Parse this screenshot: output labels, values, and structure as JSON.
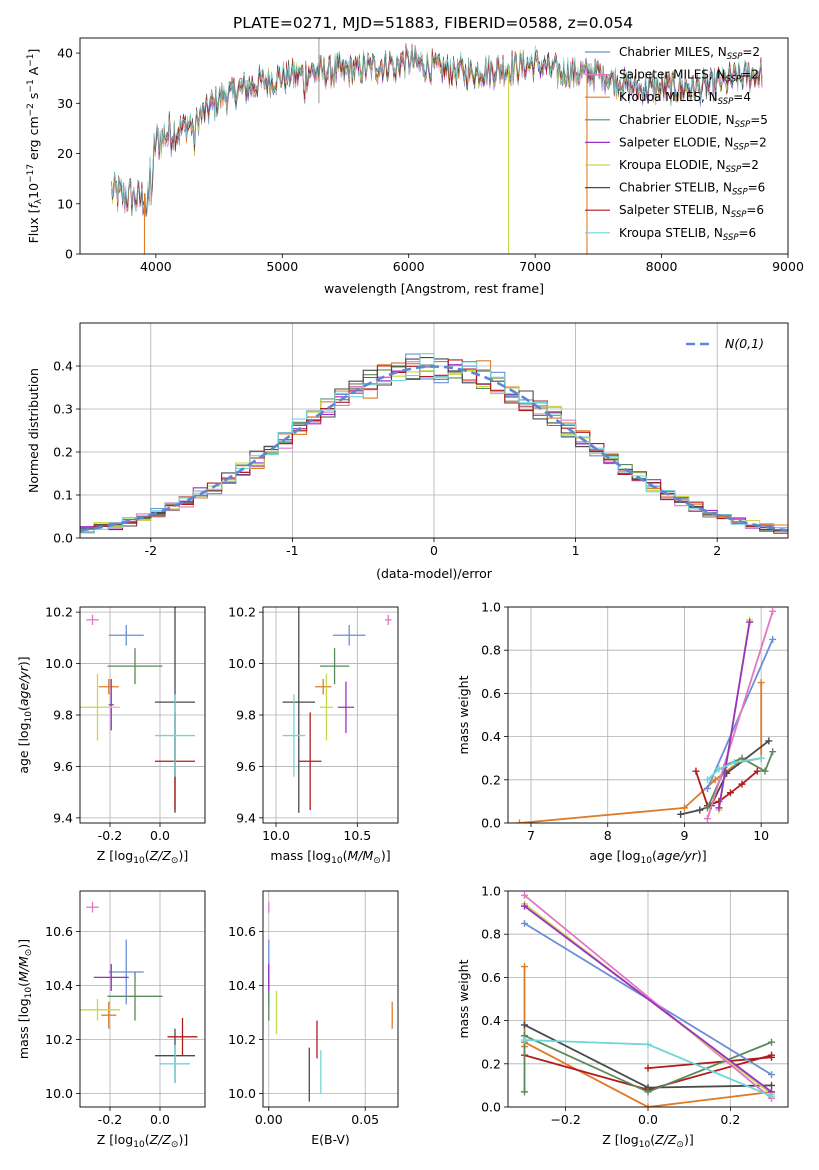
{
  "figure": {
    "title": "PLATE=0271, MJD=51883, FIBERID=0588, z=0.054"
  },
  "colors": {
    "c0": "#6b8fd6",
    "c1": "#e377c2",
    "c2": "#e07b28",
    "c3": "#5a8a5a",
    "c4": "#9b30c8",
    "c5": "#c8d84a",
    "c6": "#4a4a4a",
    "c7": "#b01c1c",
    "c8": "#6fd5d8",
    "normal": "#5b88d6"
  },
  "chart_data": [
    {
      "id": "spectrum",
      "type": "line",
      "xlabel": "wavelength [Angstrom, rest frame]",
      "ylabel": "Flux [f_λ10^-17 erg cm^-2 s^-1 A^-1]",
      "xlim": [
        3400,
        9000
      ],
      "ylim": [
        0,
        43
      ],
      "xticks": [
        4000,
        5000,
        6000,
        7000,
        8000,
        9000
      ],
      "yticks": [
        0,
        10,
        20,
        30,
        40
      ],
      "grid": false,
      "legend": "top-right",
      "continuum": {
        "x": [
          3650,
          3900,
          4000,
          4100,
          4300,
          4500,
          4800,
          5000,
          5200,
          5500,
          5800,
          6000,
          6200,
          6500,
          6800,
          7000,
          7200,
          7500,
          7800,
          8000,
          8300,
          8600,
          8800
        ],
        "y": [
          12,
          11,
          22,
          24,
          26,
          31,
          34,
          35,
          36,
          36.5,
          37.5,
          38.5,
          37,
          36,
          37,
          38,
          36,
          36,
          33,
          33,
          33,
          35,
          36
        ]
      },
      "series": [
        {
          "name": "Chabrier MILES, N_SSP=2",
          "label_main": "Chabrier MILES, N",
          "label_sub": "SSP",
          "label_end": "=2",
          "color": "#6b8fd6",
          "lw": 1.2
        },
        {
          "name": "Salpeter MILES, N_SSP=2",
          "label_main": "Salpeter MILES, N",
          "label_sub": "SSP",
          "label_end": "=2",
          "color": "#e377c2",
          "lw": 1.2
        },
        {
          "name": "Kroupa MILES, N_SSP=4",
          "label_main": "Kroupa MILES, N",
          "label_sub": "SSP",
          "label_end": "=4",
          "color": "#e07b28",
          "lw": 1.2
        },
        {
          "name": "Chabrier ELODIE, N_SSP=5",
          "label_main": "Chabrier ELODIE, N",
          "label_sub": "SSP",
          "label_end": "=5",
          "color": "#5a8a5a",
          "lw": 1.2
        },
        {
          "name": "Salpeter ELODIE, N_SSP=2",
          "label_main": "Salpeter ELODIE, N",
          "label_sub": "SSP",
          "label_end": "=2",
          "color": "#9b30c8",
          "lw": 1.2
        },
        {
          "name": "Kroupa ELODIE, N_SSP=2",
          "label_main": "Kroupa ELODIE, N",
          "label_sub": "SSP",
          "label_end": "=2",
          "color": "#c8d84a",
          "lw": 1.2
        },
        {
          "name": "Chabrier STELIB, N_SSP=6",
          "label_main": "Chabrier STELIB, N",
          "label_sub": "SSP",
          "label_end": "=6",
          "color": "#4a4a4a",
          "lw": 1.2
        },
        {
          "name": "Salpeter STELIB, N_SSP=6",
          "label_main": "Salpeter STELIB, N",
          "label_sub": "SSP",
          "label_end": "=6",
          "color": "#b01c1c",
          "lw": 1.2
        },
        {
          "name": "Kroupa STELIB, N_SSP=6",
          "label_main": "Kroupa STELIB, N",
          "label_sub": "SSP",
          "label_end": "=6",
          "color": "#6fd5d8",
          "lw": 1.2
        }
      ],
      "spikes": [
        {
          "x": 3910,
          "color": "#e07b28"
        },
        {
          "x": 6790,
          "color": "#c8d84a"
        },
        {
          "x": 7410,
          "color": "#e07b28"
        }
      ]
    },
    {
      "id": "residuals",
      "type": "histogram",
      "xlabel": "(data-model)/error",
      "ylabel": "Normed distribution",
      "xlim": [
        -2.5,
        2.5
      ],
      "ylim": [
        0,
        0.5
      ],
      "xticks": [
        -2,
        -1,
        0,
        1,
        2
      ],
      "yticks": [
        0.0,
        0.1,
        0.2,
        0.3,
        0.4
      ],
      "grid": true,
      "bin_width": 0.1,
      "normal_curve": {
        "label": "N(0,1)",
        "mean": 0,
        "std": 1
      },
      "legend": "top-right"
    },
    {
      "id": "age_vs_Z",
      "type": "errorbar",
      "xlabel": "Z [log10(Z/Z_sun)]",
      "ylabel": "age [log10(age/yr)]",
      "xlim": [
        -0.32,
        0.18
      ],
      "ylim": [
        9.38,
        10.22
      ],
      "xticks": [
        -0.2,
        0.0
      ],
      "yticks": [
        9.4,
        9.6,
        9.8,
        10.0,
        10.2
      ],
      "points": [
        {
          "color": "#6b8fd6",
          "x": -0.135,
          "y": 10.11,
          "xerr": 0.07,
          "yerr": 0.04
        },
        {
          "color": "#e377c2",
          "x": -0.27,
          "y": 10.17,
          "xerr": 0.025,
          "yerr": 0.02
        },
        {
          "color": "#e07b28",
          "x": -0.205,
          "y": 9.91,
          "xerr": 0.04,
          "yerr": 0.03
        },
        {
          "color": "#5a8a5a",
          "x": -0.1,
          "y": 9.99,
          "xerr": 0.11,
          "yerr": 0.07
        },
        {
          "color": "#9b30c8",
          "x": -0.195,
          "y": 9.84,
          "xerr": 0.01,
          "yerr": 0.1
        },
        {
          "color": "#c8d84a",
          "x": -0.25,
          "y": 9.83,
          "xerr": 0.09,
          "yerr": 0.13
        },
        {
          "color": "#4a4a4a",
          "x": 0.06,
          "y": 9.85,
          "xerr": 0.08,
          "yerr": 0.43
        },
        {
          "color": "#b01c1c",
          "x": 0.06,
          "y": 9.62,
          "xerr": 0.08,
          "yerr": 0.19
        },
        {
          "color": "#6fd5d8",
          "x": 0.06,
          "y": 9.72,
          "xerr": 0.08,
          "yerr": 0.16
        }
      ]
    },
    {
      "id": "age_vs_mass",
      "type": "errorbar",
      "xlabel": "mass [log10(M/M_sun)]",
      "ylabel": "",
      "xlim": [
        9.92,
        10.75
      ],
      "ylim": [
        9.38,
        10.22
      ],
      "xticks": [
        10.0,
        10.5
      ],
      "yticks": [
        9.4,
        9.6,
        9.8,
        10.0,
        10.2
      ],
      "points": [
        {
          "color": "#6b8fd6",
          "x": 10.45,
          "y": 10.11,
          "xerr": 0.1,
          "yerr": 0.04
        },
        {
          "color": "#e377c2",
          "x": 10.69,
          "y": 10.17,
          "xerr": 0.02,
          "yerr": 0.02
        },
        {
          "color": "#e07b28",
          "x": 10.29,
          "y": 9.91,
          "xerr": 0.05,
          "yerr": 0.03
        },
        {
          "color": "#5a8a5a",
          "x": 10.36,
          "y": 9.99,
          "xerr": 0.09,
          "yerr": 0.07
        },
        {
          "color": "#9b30c8",
          "x": 10.43,
          "y": 9.83,
          "xerr": 0.05,
          "yerr": 0.1
        },
        {
          "color": "#c8d84a",
          "x": 10.31,
          "y": 9.83,
          "xerr": 0.04,
          "yerr": 0.13
        },
        {
          "color": "#4a4a4a",
          "x": 10.14,
          "y": 9.85,
          "xerr": 0.1,
          "yerr": 0.43
        },
        {
          "color": "#b01c1c",
          "x": 10.21,
          "y": 9.62,
          "xerr": 0.07,
          "yerr": 0.19
        },
        {
          "color": "#6fd5d8",
          "x": 10.11,
          "y": 9.72,
          "xerr": 0.07,
          "yerr": 0.16
        }
      ]
    },
    {
      "id": "weight_vs_age",
      "type": "line",
      "xlabel": "age [log10(age/yr)]",
      "ylabel": "mass weight",
      "xlim": [
        6.7,
        10.35
      ],
      "ylim": [
        0,
        1
      ],
      "xticks": [
        7,
        8,
        9,
        10
      ],
      "yticks": [
        0.0,
        0.2,
        0.4,
        0.6,
        0.8,
        1.0
      ],
      "grid": true,
      "series": [
        {
          "color": "#e07b28",
          "x": [
            6.85,
            9.0,
            9.4,
            9.7,
            10.0,
            10.0
          ],
          "y": [
            0.0,
            0.07,
            0.2,
            0.28,
            0.3,
            0.65
          ]
        },
        {
          "color": "#b01c1c",
          "x": [
            9.15,
            9.3,
            9.45,
            9.6,
            9.75,
            9.95
          ],
          "y": [
            0.24,
            0.08,
            0.1,
            0.14,
            0.18,
            0.24
          ]
        },
        {
          "color": "#4a4a4a",
          "x": [
            8.95,
            9.2,
            9.35,
            9.55,
            10.1
          ],
          "y": [
            0.04,
            0.06,
            0.08,
            0.23,
            0.38
          ]
        },
        {
          "color": "#5a8a5a",
          "x": [
            9.3,
            9.55,
            9.75,
            10.05,
            10.15
          ],
          "y": [
            0.07,
            0.27,
            0.3,
            0.24,
            0.33
          ]
        },
        {
          "color": "#6b8fd6",
          "x": [
            9.3,
            10.15
          ],
          "y": [
            0.16,
            0.85
          ]
        },
        {
          "color": "#e377c2",
          "x": [
            9.3,
            10.15
          ],
          "y": [
            0.02,
            0.98
          ]
        },
        {
          "color": "#c8d84a",
          "x": [
            9.45,
            9.85
          ],
          "y": [
            0.06,
            0.94
          ]
        },
        {
          "color": "#9b30c8",
          "x": [
            9.45,
            9.85
          ],
          "y": [
            0.07,
            0.93
          ]
        },
        {
          "color": "#6fd5d8",
          "x": [
            9.3,
            9.45,
            9.65,
            10.0
          ],
          "y": [
            0.2,
            0.25,
            0.28,
            0.3
          ]
        }
      ]
    },
    {
      "id": "mass_vs_Z",
      "type": "errorbar",
      "xlabel": "Z [log10(Z/Z_sun)]",
      "ylabel": "mass [log10(M/M_sun)]",
      "xlim": [
        -0.32,
        0.18
      ],
      "ylim": [
        9.95,
        10.75
      ],
      "xticks": [
        -0.2,
        0.0
      ],
      "yticks": [
        10.0,
        10.2,
        10.4,
        10.6
      ],
      "points": [
        {
          "color": "#6b8fd6",
          "x": -0.135,
          "y": 10.45,
          "xerr": 0.07,
          "yerr": 0.12
        },
        {
          "color": "#e377c2",
          "x": -0.27,
          "y": 10.69,
          "xerr": 0.025,
          "yerr": 0.02
        },
        {
          "color": "#e07b28",
          "x": -0.205,
          "y": 10.29,
          "xerr": 0.03,
          "yerr": 0.05
        },
        {
          "color": "#5a8a5a",
          "x": -0.1,
          "y": 10.36,
          "xerr": 0.11,
          "yerr": 0.09
        },
        {
          "color": "#9b30c8",
          "x": -0.195,
          "y": 10.43,
          "xerr": 0.07,
          "yerr": 0.05
        },
        {
          "color": "#c8d84a",
          "x": -0.25,
          "y": 10.31,
          "xerr": 0.09,
          "yerr": 0.04
        },
        {
          "color": "#4a4a4a",
          "x": 0.06,
          "y": 10.14,
          "xerr": 0.08,
          "yerr": 0.1
        },
        {
          "color": "#b01c1c",
          "x": 0.09,
          "y": 10.21,
          "xerr": 0.06,
          "yerr": 0.07
        },
        {
          "color": "#6fd5d8",
          "x": 0.06,
          "y": 10.11,
          "xerr": 0.06,
          "yerr": 0.07
        }
      ]
    },
    {
      "id": "mass_vs_EBV",
      "type": "errorbar",
      "xlabel": "E(B-V)",
      "ylabel": "",
      "xlim": [
        -0.003,
        0.067
      ],
      "ylim": [
        9.95,
        10.75
      ],
      "xticks": [
        0.0,
        0.05
      ],
      "yticks": [
        10.0,
        10.2,
        10.4,
        10.6
      ],
      "points": [
        {
          "color": "#6b8fd6",
          "x": 0.0,
          "y": 10.45,
          "xerr": 0,
          "yerr": 0.12
        },
        {
          "color": "#e377c2",
          "x": 0.0,
          "y": 10.69,
          "xerr": 0,
          "yerr": 0.02
        },
        {
          "color": "#e07b28",
          "x": 0.064,
          "y": 10.29,
          "xerr": 0,
          "yerr": 0.05
        },
        {
          "color": "#5a8a5a",
          "x": 0.0,
          "y": 10.36,
          "xerr": 0,
          "yerr": 0.09
        },
        {
          "color": "#9b30c8",
          "x": 0.0,
          "y": 10.43,
          "xerr": 0,
          "yerr": 0.05
        },
        {
          "color": "#c8d84a",
          "x": 0.004,
          "y": 10.3,
          "xerr": 0,
          "yerr": 0.08
        },
        {
          "color": "#4a4a4a",
          "x": 0.021,
          "y": 10.07,
          "xerr": 0,
          "yerr": 0.1
        },
        {
          "color": "#b01c1c",
          "x": 0.025,
          "y": 10.2,
          "xerr": 0,
          "yerr": 0.07
        },
        {
          "color": "#6fd5d8",
          "x": 0.027,
          "y": 10.08,
          "xerr": 0,
          "yerr": 0.08
        }
      ]
    },
    {
      "id": "weight_vs_Z",
      "type": "line",
      "xlabel": "Z [log10(Z/Z_sun)]",
      "ylabel": "mass weight",
      "xlim": [
        -0.34,
        0.34
      ],
      "ylim": [
        0,
        1
      ],
      "xticks": [
        -0.2,
        0.0,
        0.2
      ],
      "yticks": [
        0.0,
        0.2,
        0.4,
        0.6,
        0.8,
        1.0
      ],
      "grid": true,
      "series": [
        {
          "color": "#e07b28",
          "x": [
            -0.3,
            0.0,
            0.3
          ],
          "y": [
            0.3,
            0.0,
            0.07
          ]
        },
        {
          "color": "#e07b28",
          "x": [
            -0.3,
            -0.3
          ],
          "y": [
            0.65,
            0.28
          ]
        },
        {
          "color": "#b01c1c",
          "x": [
            -0.3,
            0.0,
            0.3
          ],
          "y": [
            0.24,
            0.08,
            0.24
          ]
        },
        {
          "color": "#b01c1c",
          "x": [
            0.0,
            0.3
          ],
          "y": [
            0.18,
            0.23
          ]
        },
        {
          "color": "#4a4a4a",
          "x": [
            -0.3,
            0.0,
            0.3
          ],
          "y": [
            0.38,
            0.09,
            0.1
          ]
        },
        {
          "color": "#5a8a5a",
          "x": [
            -0.3,
            0.0,
            0.3
          ],
          "y": [
            0.33,
            0.07,
            0.3
          ]
        },
        {
          "color": "#5a8a5a",
          "x": [
            -0.3,
            -0.3
          ],
          "y": [
            0.33,
            0.07
          ]
        },
        {
          "color": "#6b8fd6",
          "x": [
            -0.3,
            0.3
          ],
          "y": [
            0.85,
            0.15
          ]
        },
        {
          "color": "#e377c2",
          "x": [
            -0.3,
            0.3
          ],
          "y": [
            0.98,
            0.04
          ]
        },
        {
          "color": "#c8d84a",
          "x": [
            -0.3,
            0.3
          ],
          "y": [
            0.94,
            0.06
          ]
        },
        {
          "color": "#9b30c8",
          "x": [
            -0.3,
            0.3
          ],
          "y": [
            0.93,
            0.07
          ]
        },
        {
          "color": "#6fd5d8",
          "x": [
            -0.3,
            0.0,
            0.3
          ],
          "y": [
            0.31,
            0.29,
            0.05
          ]
        }
      ]
    }
  ]
}
